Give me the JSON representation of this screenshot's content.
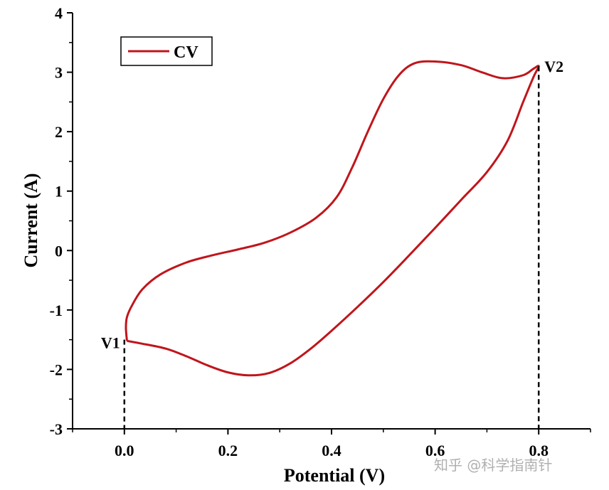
{
  "chart_data": {
    "type": "line",
    "title": "",
    "xlabel": "Potential (V)",
    "ylabel": "Current (A)",
    "xlim": [
      -0.1,
      0.9
    ],
    "ylim": [
      -3,
      4
    ],
    "xticks": [
      0.0,
      0.2,
      0.4,
      0.6,
      0.8
    ],
    "xtick_labels": [
      "0.0",
      "0.2",
      "0.4",
      "0.6",
      "0.8"
    ],
    "yticks": [
      -3,
      -2,
      -1,
      0,
      1,
      2,
      3,
      4
    ],
    "ytick_labels": [
      "-3",
      "-2",
      "-1",
      "0",
      "1",
      "2",
      "3",
      "4"
    ],
    "legend": {
      "position": "top-left",
      "entries": [
        "CV"
      ]
    },
    "grid": false,
    "series": [
      {
        "name": "CV",
        "color": "#c0151b",
        "points": [
          [
            0.005,
            -1.52
          ],
          [
            0.03,
            -1.56
          ],
          [
            0.08,
            -1.65
          ],
          [
            0.12,
            -1.78
          ],
          [
            0.16,
            -1.93
          ],
          [
            0.2,
            -2.05
          ],
          [
            0.24,
            -2.1
          ],
          [
            0.28,
            -2.06
          ],
          [
            0.32,
            -1.9
          ],
          [
            0.36,
            -1.65
          ],
          [
            0.4,
            -1.35
          ],
          [
            0.45,
            -0.95
          ],
          [
            0.5,
            -0.53
          ],
          [
            0.55,
            -0.08
          ],
          [
            0.6,
            0.38
          ],
          [
            0.65,
            0.85
          ],
          [
            0.7,
            1.32
          ],
          [
            0.74,
            1.85
          ],
          [
            0.77,
            2.5
          ],
          [
            0.79,
            2.92
          ],
          [
            0.8,
            3.1
          ],
          [
            0.79,
            3.06
          ],
          [
            0.77,
            2.95
          ],
          [
            0.73,
            2.9
          ],
          [
            0.69,
            3.0
          ],
          [
            0.65,
            3.12
          ],
          [
            0.6,
            3.18
          ],
          [
            0.56,
            3.15
          ],
          [
            0.53,
            2.95
          ],
          [
            0.5,
            2.55
          ],
          [
            0.47,
            2.0
          ],
          [
            0.44,
            1.4
          ],
          [
            0.41,
            0.9
          ],
          [
            0.37,
            0.55
          ],
          [
            0.32,
            0.3
          ],
          [
            0.27,
            0.13
          ],
          [
            0.22,
            0.02
          ],
          [
            0.17,
            -0.08
          ],
          [
            0.12,
            -0.2
          ],
          [
            0.07,
            -0.4
          ],
          [
            0.035,
            -0.65
          ],
          [
            0.015,
            -0.92
          ],
          [
            0.005,
            -1.12
          ],
          [
            0.003,
            -1.3
          ],
          [
            0.005,
            -1.52
          ]
        ]
      }
    ],
    "annotations": [
      {
        "text": "V1",
        "x": 0.0,
        "y": -1.5
      },
      {
        "text": "V2",
        "x": 0.8,
        "y": 3.1
      }
    ]
  },
  "watermark": "知乎 @科学指南针"
}
